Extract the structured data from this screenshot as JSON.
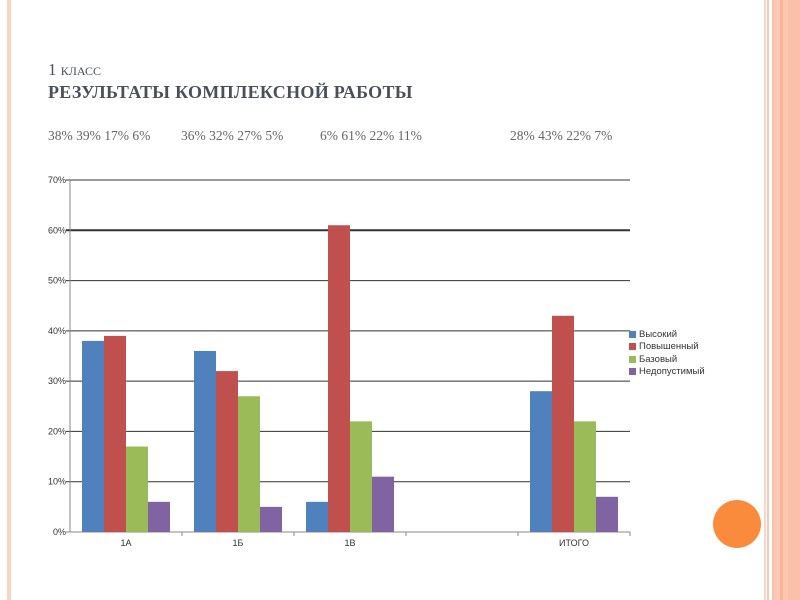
{
  "title": {
    "line1": "1 класс",
    "line2": "РЕЗУЛЬТАТЫ КОМПЛЕКСНОЙ РАБОТЫ"
  },
  "percent_rows": [
    "38% 39% 17% 6%",
    "36% 32% 27% 5%",
    "6% 61% 22% 11%",
    "28% 43% 22% 7%"
  ],
  "chart_data": {
    "type": "bar",
    "categories": [
      "1А",
      "1Б",
      "1В",
      "",
      "ИТОГО"
    ],
    "series": [
      {
        "name": "Высокий",
        "color": "#4f81bd",
        "values": [
          38,
          36,
          6,
          null,
          28
        ]
      },
      {
        "name": "Повышенный",
        "color": "#c0504d",
        "values": [
          39,
          32,
          61,
          null,
          43
        ]
      },
      {
        "name": "Базовый",
        "color": "#9bbb59",
        "values": [
          17,
          27,
          22,
          null,
          22
        ]
      },
      {
        "name": "Недопустимый",
        "color": "#8064a2",
        "values": [
          6,
          5,
          11,
          null,
          7
        ]
      }
    ],
    "yticks": [
      "0%",
      "10%",
      "20%",
      "30%",
      "40%",
      "50%",
      "60%",
      "70%"
    ],
    "ylim": [
      0,
      70
    ],
    "grid": true,
    "legend": "right"
  }
}
